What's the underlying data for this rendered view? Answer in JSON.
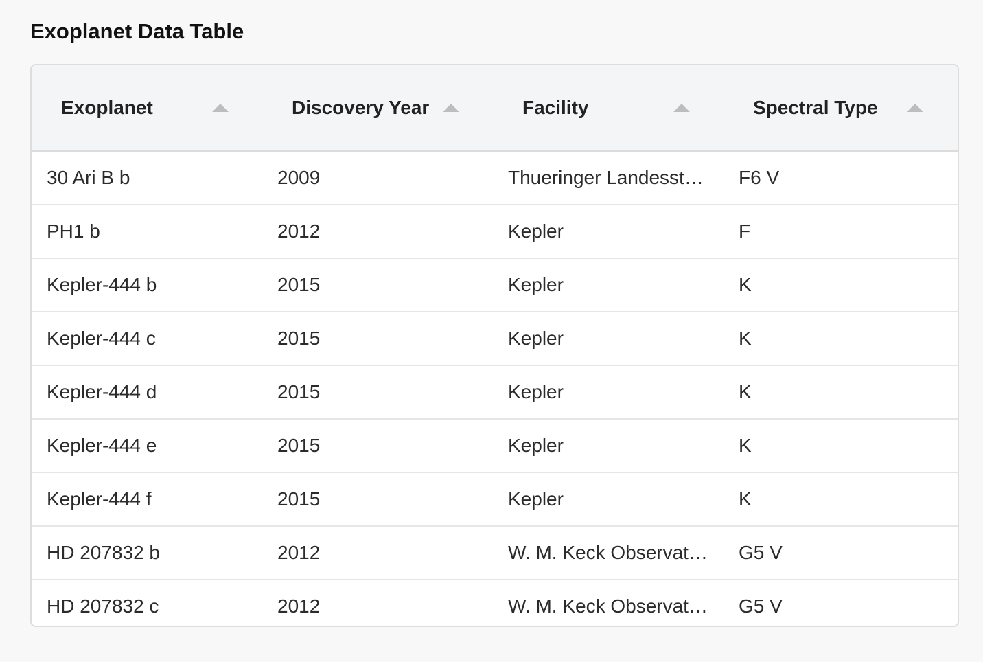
{
  "title": "Exoplanet Data Table",
  "columns": [
    {
      "label": "Exoplanet",
      "sort": "ascending"
    },
    {
      "label": "Discovery Year",
      "sort": "ascending"
    },
    {
      "label": "Facility",
      "sort": "ascending"
    },
    {
      "label": "Spectral Type",
      "sort": "ascending"
    }
  ],
  "rows": [
    [
      "30 Ari B b",
      "2009",
      "Thueringer Landessternwarte Tautenburg",
      "F6 V"
    ],
    [
      "PH1 b",
      "2012",
      "Kepler",
      "F"
    ],
    [
      "Kepler-444 b",
      "2015",
      "Kepler",
      "K"
    ],
    [
      "Kepler-444 c",
      "2015",
      "Kepler",
      "K"
    ],
    [
      "Kepler-444 d",
      "2015",
      "Kepler",
      "K"
    ],
    [
      "Kepler-444 e",
      "2015",
      "Kepler",
      "K"
    ],
    [
      "Kepler-444 f",
      "2015",
      "Kepler",
      "K"
    ],
    [
      "HD 207832 b",
      "2012",
      "W. M. Keck Observatory",
      "G5 V"
    ],
    [
      "HD 207832 c",
      "2012",
      "W. M. Keck Observatory",
      "G5 V"
    ]
  ],
  "colors": {
    "background": "#f8f8f8",
    "header_background": "#f4f5f7",
    "sort_icon": "#bdbdbd",
    "border": "#dddddd"
  },
  "icons": {
    "sort": "sort-ascending-triangle-icon"
  }
}
